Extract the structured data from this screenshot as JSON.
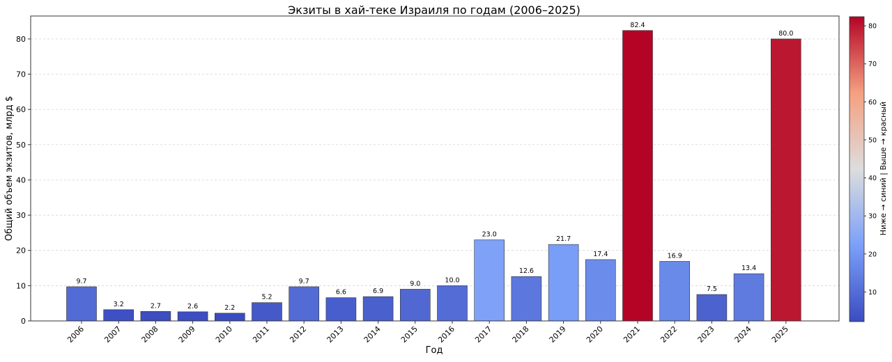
{
  "chart_data": {
    "type": "bar",
    "title": "Экзиты в хай-теке Израиля по годам (2006–2025)",
    "xlabel": "Год",
    "ylabel": "Общий объем экзитов, млрд $",
    "categories": [
      "2006",
      "2007",
      "2008",
      "2009",
      "2010",
      "2011",
      "2012",
      "2013",
      "2014",
      "2015",
      "2016",
      "2017",
      "2018",
      "2019",
      "2020",
      "2021",
      "2022",
      "2023",
      "2024",
      "2025"
    ],
    "values": [
      9.7,
      3.2,
      2.7,
      2.6,
      2.2,
      5.2,
      9.7,
      6.6,
      6.9,
      9.0,
      10.0,
      23.0,
      12.6,
      21.7,
      17.4,
      82.4,
      16.9,
      7.5,
      13.4,
      80.0
    ],
    "data_labels": [
      "9.7",
      "3.2",
      "2.7",
      "2.6",
      "2.2",
      "5.2",
      "9.7",
      "6.6",
      "6.9",
      "9.0",
      "10.0",
      "23.0",
      "12.6",
      "21.7",
      "17.4",
      "82.4",
      "16.9",
      "7.5",
      "13.4",
      "80.0"
    ],
    "ylim": [
      0,
      86.5
    ],
    "yticks": [
      0,
      10,
      20,
      30,
      40,
      50,
      60,
      70,
      80
    ],
    "grid": true,
    "colormap": "coolwarm",
    "colorbar": {
      "label": "Ниже → синий | Выше → красный",
      "range": [
        2.2,
        82.4
      ],
      "ticks": [
        10,
        20,
        30,
        40,
        50,
        60,
        70,
        80
      ]
    }
  }
}
